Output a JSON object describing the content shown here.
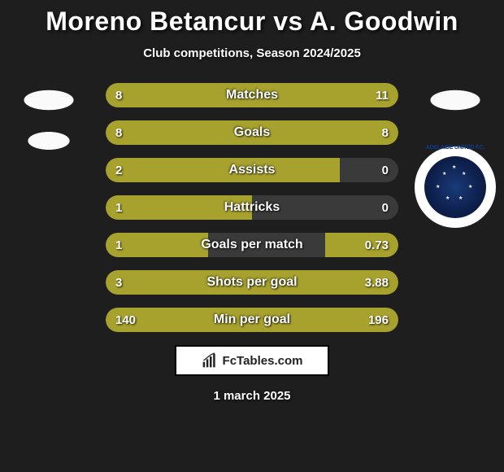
{
  "title": {
    "player1": "Moreno Betancur",
    "vs": "vs",
    "player2": "A. Goodwin",
    "fontsize": 32,
    "color": "#ffffff"
  },
  "subtitle": {
    "text": "Club competitions, Season 2024/2025",
    "fontsize": 15
  },
  "colors": {
    "background": "#1e1e1e",
    "bar_left": "#a7a22e",
    "bar_right": "#a7a22e",
    "bar_track": "#3a3a3a",
    "text": "#ffffff"
  },
  "bar": {
    "height": 30,
    "gap": 16,
    "border_radius": 15,
    "container_width": 360
  },
  "stats": [
    {
      "label": "Matches",
      "left_val": "8",
      "right_val": "11",
      "left_pct": 42,
      "right_pct": 58
    },
    {
      "label": "Goals",
      "left_val": "8",
      "right_val": "8",
      "left_pct": 50,
      "right_pct": 50
    },
    {
      "label": "Assists",
      "left_val": "2",
      "right_val": "0",
      "left_pct": 80,
      "right_pct": 0
    },
    {
      "label": "Hattricks",
      "left_val": "1",
      "right_val": "0",
      "left_pct": 50,
      "right_pct": 0
    },
    {
      "label": "Goals per match",
      "left_val": "1",
      "right_val": "0.73",
      "left_pct": 35,
      "right_pct": 25
    },
    {
      "label": "Shots per goal",
      "left_val": "3",
      "right_val": "3.88",
      "left_pct": 50,
      "right_pct": 50
    },
    {
      "label": "Min per goal",
      "left_val": "140",
      "right_val": "196",
      "left_pct": 42,
      "right_pct": 58
    }
  ],
  "badge": {
    "text_top": "ADELAIDE UNITED F.C.",
    "inner_bg": "#0d1f4a",
    "outer_bg": "#ffffff"
  },
  "footer": {
    "site": "FcTables.com",
    "date": "1 march 2025"
  }
}
